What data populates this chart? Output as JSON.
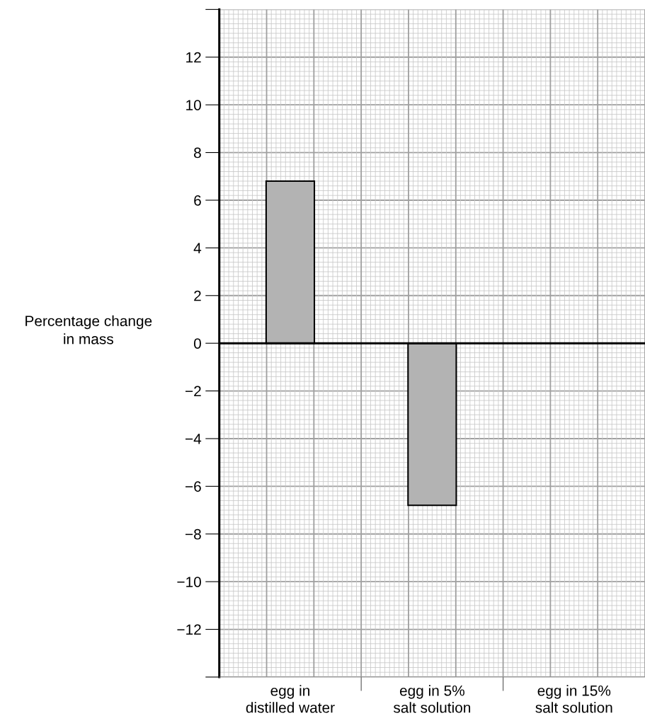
{
  "chart_data": {
    "type": "bar",
    "ylabel": "Percentage change\nin mass",
    "categories": [
      "egg in\ndistilled water",
      "egg in 5%\nsalt solution",
      "egg in 15%\nsalt solution"
    ],
    "values": [
      6.8,
      -6.8,
      null
    ],
    "color": "#b3b3b3",
    "ylim": [
      -14,
      14
    ],
    "yticks": [
      {
        "value": -14,
        "label": null
      },
      "−12",
      -10,
      -8,
      -6,
      -4,
      -2,
      0,
      2,
      4,
      6,
      8,
      10,
      12,
      {
        "value": 14,
        "label": null
      }
    ],
    "ref_lines": [
      {
        "axis": "y",
        "value": 0,
        "color": "#000000"
      }
    ],
    "grid": true
  }
}
